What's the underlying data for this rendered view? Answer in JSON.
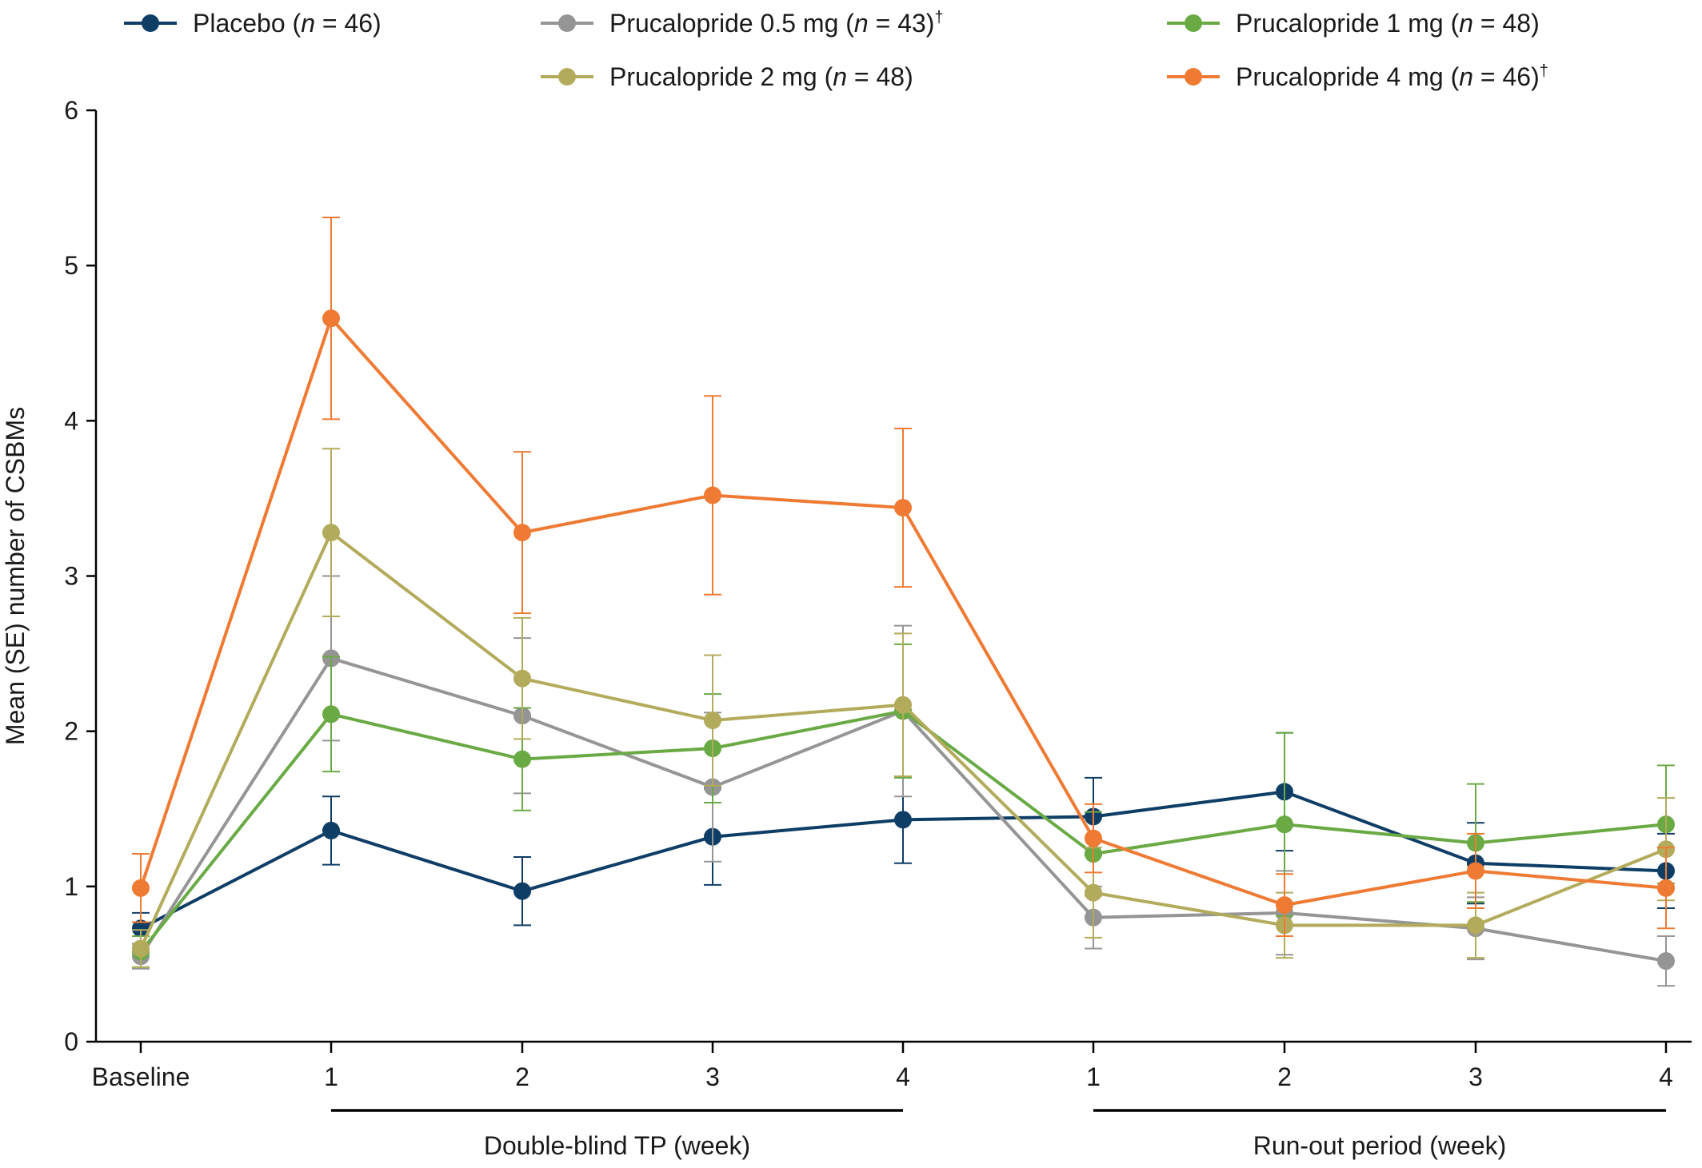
{
  "chart_data": {
    "type": "line",
    "title": "",
    "xlabel": "",
    "ylabel": "Mean (SE) number of CSBMs",
    "ylim": [
      0,
      6
    ],
    "yticks": [
      "0",
      "1",
      "2",
      "3",
      "4",
      "5",
      "6"
    ],
    "x_ticks": [
      "Baseline",
      "1",
      "2",
      "3",
      "4",
      "1",
      "2",
      "3",
      "4"
    ],
    "period_labels": [
      {
        "label": "Double-blind TP (week)",
        "from_index": 1,
        "to_index": 4
      },
      {
        "label": "Run-out period (week)",
        "from_index": 5,
        "to_index": 8
      }
    ],
    "legend_position": "top",
    "series": [
      {
        "legend_prefix": "Placebo (",
        "legend_n": "n",
        "legend_suffix": " = 46)",
        "legend_dagger": "",
        "color": "#0e3d66",
        "values": [
          0.73,
          1.36,
          0.97,
          1.32,
          1.43,
          1.45,
          1.61,
          1.15,
          1.1
        ],
        "se": [
          0.1,
          0.22,
          0.22,
          0.31,
          0.28,
          0.25,
          0.38,
          0.26,
          0.24
        ]
      },
      {
        "legend_prefix": "Prucalopride 0.5 mg (",
        "legend_n": "n",
        "legend_suffix": " = 43)",
        "legend_dagger": "†",
        "color": "#959595",
        "values": [
          0.55,
          2.47,
          2.1,
          1.64,
          2.13,
          0.8,
          0.83,
          0.73,
          0.52
        ],
        "se": [
          0.08,
          0.53,
          0.5,
          0.48,
          0.55,
          0.2,
          0.27,
          0.2,
          0.16
        ]
      },
      {
        "legend_prefix": "Prucalopride 1 mg (",
        "legend_n": "n",
        "legend_suffix": " = 48)",
        "legend_dagger": "",
        "color": "#6aaa45",
        "values": [
          0.58,
          2.11,
          1.82,
          1.89,
          2.13,
          1.21,
          1.4,
          1.28,
          1.4
        ],
        "se": [
          0.1,
          0.37,
          0.33,
          0.35,
          0.43,
          0.27,
          0.59,
          0.38,
          0.38
        ]
      },
      {
        "legend_prefix": "Prucalopride 2 mg (",
        "legend_n": "n",
        "legend_suffix": " = 48)",
        "legend_dagger": "",
        "color": "#b3ab5c",
        "values": [
          0.6,
          3.28,
          2.34,
          2.07,
          2.17,
          0.96,
          0.75,
          0.75,
          1.24
        ],
        "se": [
          0.12,
          0.54,
          0.39,
          0.42,
          0.46,
          0.29,
          0.21,
          0.21,
          0.33
        ]
      },
      {
        "legend_prefix": "Prucalopride 4 mg (",
        "legend_n": "n",
        "legend_suffix": " = 46)",
        "legend_dagger": "†",
        "color": "#ef7a33",
        "values": [
          0.99,
          4.66,
          3.28,
          3.52,
          3.44,
          1.31,
          0.88,
          1.1,
          0.99
        ],
        "se": [
          0.22,
          0.65,
          0.52,
          0.64,
          0.51,
          0.22,
          0.2,
          0.24,
          0.26
        ]
      }
    ]
  }
}
